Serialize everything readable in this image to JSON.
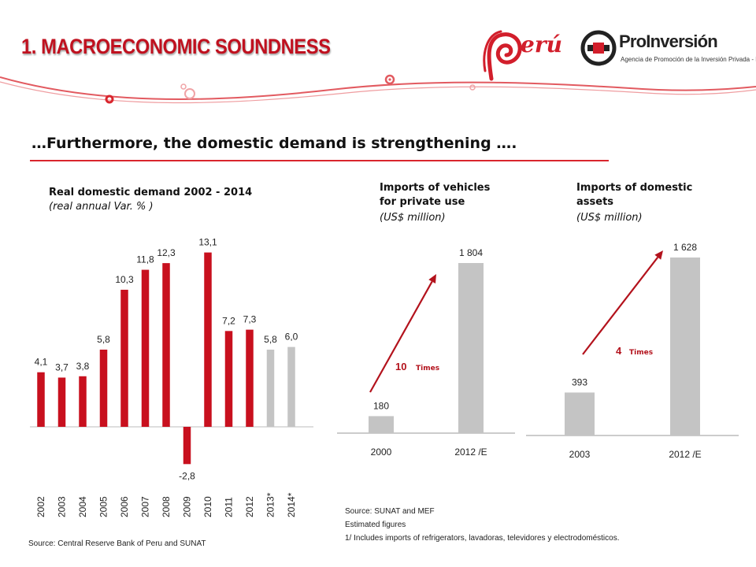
{
  "header": {
    "title": "1. MACROECONOMIC SOUNDNESS",
    "logo_peru": "erú",
    "logo_proinversion_name": "ProInversión",
    "logo_proinversion_tagline": "Agencia de Promoción de la Inversión Privada - Perú"
  },
  "headline": "…Furthermore, the domestic demand is strengthening ….",
  "colors": {
    "accent_red": "#c8101e",
    "estimate_gray": "#c4c4c4",
    "import_gray": "#c4c4c4",
    "arrow_red": "#b3121c"
  },
  "chart_data": [
    {
      "type": "bar",
      "title": "Real domestic demand  2002 - 2014",
      "subtitle": "(real annual Var. % )",
      "categories": [
        "2002",
        "2003",
        "2004",
        "2005",
        "2006",
        "2007",
        "2008",
        "2009",
        "2010",
        "2011",
        "2012",
        "2013*",
        "2014*"
      ],
      "values": [
        4.1,
        3.7,
        3.8,
        5.8,
        10.3,
        11.8,
        12.3,
        -2.8,
        13.1,
        7.2,
        7.3,
        5.8,
        6.0
      ],
      "data_labels": [
        "4,1",
        "3,7",
        "3,8",
        "5,8",
        "10,3",
        "11,8",
        "12,3",
        "-2,8",
        "13,1",
        "7,2",
        "7,3",
        "5,8",
        "6,0"
      ],
      "estimated": [
        false,
        false,
        false,
        false,
        false,
        false,
        false,
        false,
        false,
        false,
        false,
        true,
        true
      ],
      "ylim": [
        -2.8,
        13.1
      ],
      "grid": false,
      "source": "Source: Central Reserve Bank of Peru and SUNAT"
    },
    {
      "type": "bar",
      "title": "Imports of vehicles",
      "title_line2": "for private use",
      "subtitle": "(US$ million)",
      "categories": [
        "2000",
        "2012 /E"
      ],
      "values": [
        180,
        1804
      ],
      "data_labels": [
        "180",
        "1 804"
      ],
      "annotation_number": "10",
      "annotation_text": "Times",
      "grid": false
    },
    {
      "type": "bar",
      "title": "Imports of domestic",
      "title_line2": "assets",
      "subtitle": "(US$ million)",
      "categories": [
        "2003",
        "2012 /E"
      ],
      "values": [
        393,
        1628
      ],
      "data_labels": [
        "393",
        "1 628"
      ],
      "annotation_number": "4",
      "annotation_text": "Times",
      "grid": false
    }
  ],
  "notes": {
    "line1": "Source: SUNAT and MEF",
    "line2": "Estimated figures",
    "line3": "1/ Includes imports of refrigerators, lavadoras, televidores y electrodomésticos."
  }
}
